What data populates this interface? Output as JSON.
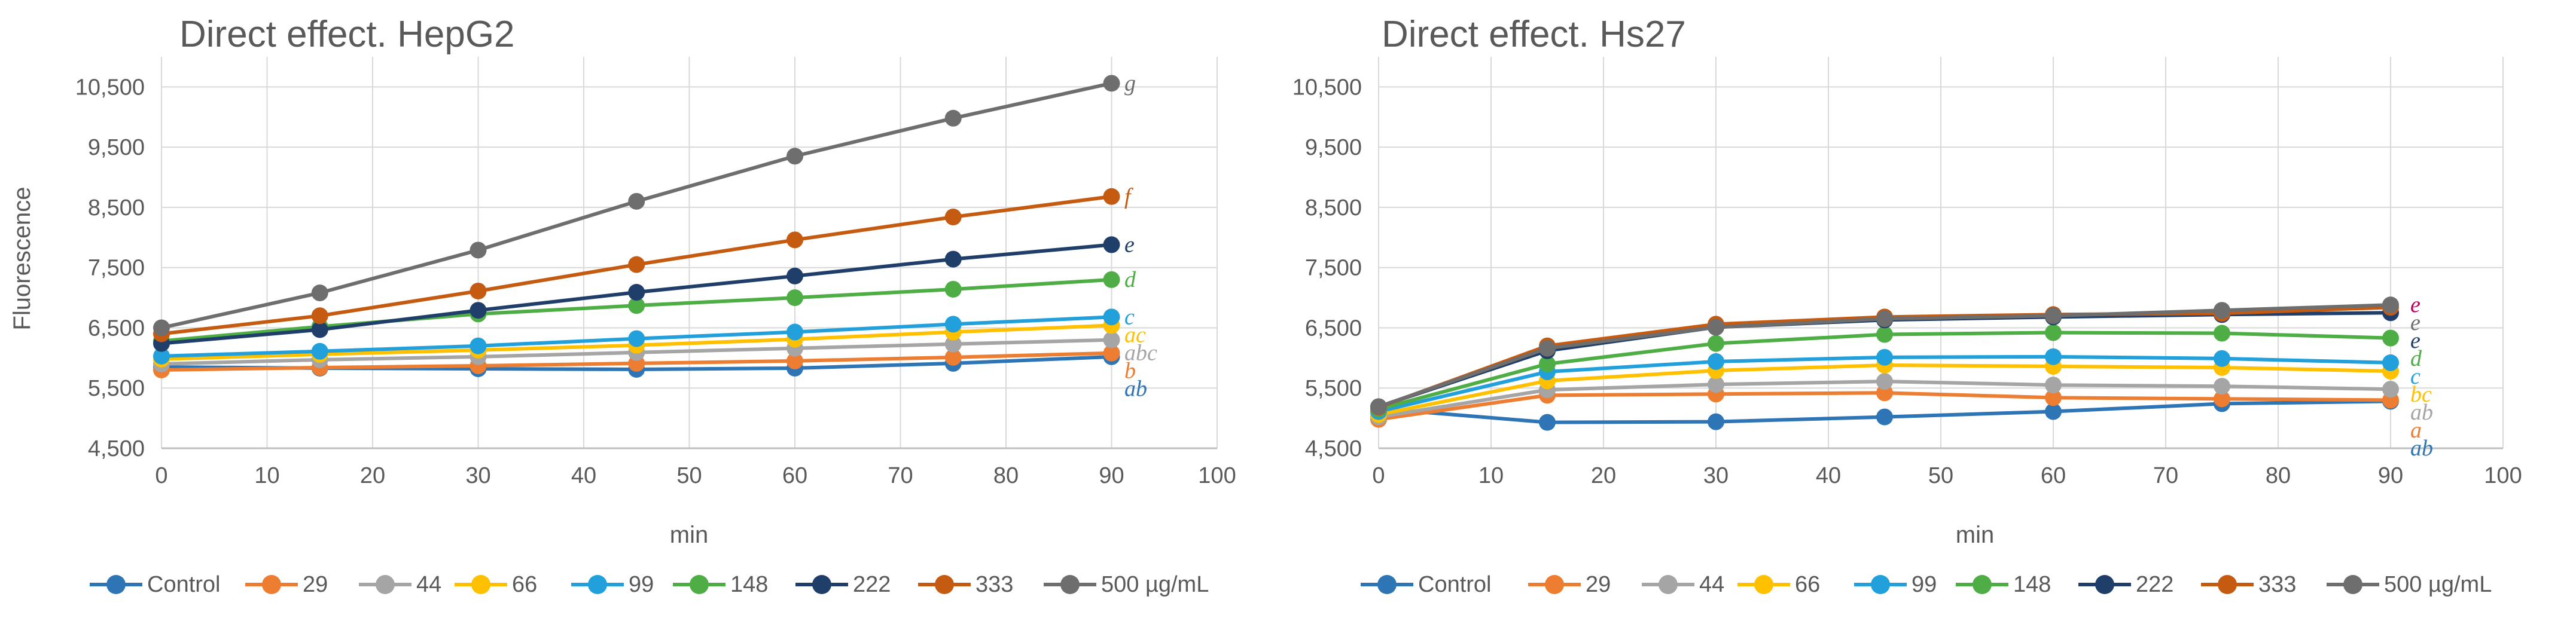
{
  "chart_data": [
    {
      "type": "line",
      "title": "Direct effect. HepG2",
      "xlabel": "min",
      "ylabel": "Fluorescence",
      "xlim": [
        0,
        100
      ],
      "ylim": [
        4500,
        11000
      ],
      "xticks": [
        0,
        10,
        20,
        30,
        40,
        50,
        60,
        70,
        80,
        90,
        100
      ],
      "yticks": [
        4500,
        5500,
        6500,
        7500,
        8500,
        9500,
        10500
      ],
      "ytick_labels": [
        "4,500",
        "5,500",
        "6,500",
        "7,500",
        "8,500",
        "9,500",
        "10,500"
      ],
      "grid": true,
      "x": [
        0,
        15,
        30,
        45,
        60,
        75,
        90
      ],
      "series": [
        {
          "name": "Control",
          "color": "#2E75B6",
          "values": [
            5850,
            5830,
            5820,
            5810,
            5830,
            5910,
            6020
          ]
        },
        {
          "name": "29",
          "color": "#ED7D31",
          "values": [
            5800,
            5840,
            5870,
            5910,
            5950,
            6010,
            6080
          ]
        },
        {
          "name": "44",
          "color": "#A5A5A5",
          "values": [
            5900,
            5970,
            6020,
            6090,
            6160,
            6230,
            6300
          ]
        },
        {
          "name": "66",
          "color": "#FFC000",
          "values": [
            5980,
            6060,
            6130,
            6210,
            6310,
            6430,
            6540
          ]
        },
        {
          "name": "99",
          "color": "#21A0DB",
          "values": [
            6030,
            6110,
            6200,
            6320,
            6430,
            6560,
            6680
          ]
        },
        {
          "name": "148",
          "color": "#4EAE45",
          "values": [
            6280,
            6520,
            6730,
            6870,
            7000,
            7140,
            7300
          ]
        },
        {
          "name": "222",
          "color": "#1F3E6A",
          "values": [
            6240,
            6470,
            6790,
            7090,
            7360,
            7640,
            7880
          ]
        },
        {
          "name": "333",
          "color": "#C55A11",
          "values": [
            6400,
            6700,
            7110,
            7550,
            7960,
            8340,
            8680
          ]
        },
        {
          "name": "500 µg/mL",
          "color": "#6E6E6E",
          "values": [
            6500,
            7080,
            7790,
            8600,
            9350,
            9980,
            10560
          ]
        }
      ],
      "annotations": [
        {
          "text": "g",
          "color": "#6E6E6E"
        },
        {
          "text": "f",
          "color": "#C55A11"
        },
        {
          "text": "e",
          "color": "#1F3E6A"
        },
        {
          "text": "d",
          "color": "#4EAE45"
        },
        {
          "text": "c",
          "color": "#21A0DB"
        },
        {
          "text": "ac",
          "color": "#FFC000"
        },
        {
          "text": "abc",
          "color": "#A5A5A5"
        },
        {
          "text": "b",
          "color": "#ED7D31"
        },
        {
          "text": "ab",
          "color": "#2E75B6"
        }
      ],
      "legend_position": "bottom"
    },
    {
      "type": "line",
      "title": "Direct effect. Hs27",
      "xlabel": "min",
      "ylabel": "",
      "xlim": [
        0,
        100
      ],
      "ylim": [
        4500,
        11000
      ],
      "xticks": [
        0,
        10,
        20,
        30,
        40,
        50,
        60,
        70,
        80,
        90,
        100
      ],
      "yticks": [
        4500,
        5500,
        6500,
        7500,
        8500,
        9500,
        10500
      ],
      "ytick_labels": [
        "4,500",
        "5,500",
        "6,500",
        "7,500",
        "8,500",
        "9,500",
        "10,500"
      ],
      "grid": true,
      "x": [
        0,
        15,
        30,
        45,
        60,
        75,
        90
      ],
      "series": [
        {
          "name": "Control",
          "color": "#2E75B6",
          "values": [
            5160,
            4930,
            4940,
            5020,
            5110,
            5240,
            5280
          ]
        },
        {
          "name": "29",
          "color": "#ED7D31",
          "values": [
            4980,
            5380,
            5400,
            5420,
            5340,
            5320,
            5300
          ]
        },
        {
          "name": "44",
          "color": "#A5A5A5",
          "values": [
            5020,
            5470,
            5560,
            5610,
            5550,
            5530,
            5480
          ]
        },
        {
          "name": "66",
          "color": "#FFC000",
          "values": [
            5060,
            5620,
            5790,
            5880,
            5860,
            5840,
            5780
          ]
        },
        {
          "name": "99",
          "color": "#21A0DB",
          "values": [
            5110,
            5770,
            5940,
            6010,
            6020,
            5990,
            5920
          ]
        },
        {
          "name": "148",
          "color": "#4EAE45",
          "values": [
            5150,
            5900,
            6240,
            6390,
            6420,
            6410,
            6330
          ]
        },
        {
          "name": "222",
          "color": "#1F3E6A",
          "values": [
            5190,
            6120,
            6510,
            6630,
            6680,
            6720,
            6750
          ]
        },
        {
          "name": "333",
          "color": "#C55A11",
          "values": [
            5180,
            6200,
            6560,
            6680,
            6720,
            6740,
            6840
          ]
        },
        {
          "name": "500 µg/mL",
          "color": "#6E6E6E",
          "values": [
            5190,
            6160,
            6510,
            6650,
            6700,
            6790,
            6880
          ]
        }
      ],
      "annotations": [
        {
          "text": "e",
          "color": "#C00060"
        },
        {
          "text": "e",
          "color": "#6E6E6E"
        },
        {
          "text": "e",
          "color": "#1F3E6A"
        },
        {
          "text": "d",
          "color": "#4EAE45"
        },
        {
          "text": "c",
          "color": "#21A0DB"
        },
        {
          "text": "bc",
          "color": "#FFC000"
        },
        {
          "text": "ab",
          "color": "#A5A5A5"
        },
        {
          "text": "a",
          "color": "#ED7D31"
        },
        {
          "text": "ab",
          "color": "#2E75B6"
        }
      ],
      "legend_position": "bottom"
    }
  ]
}
